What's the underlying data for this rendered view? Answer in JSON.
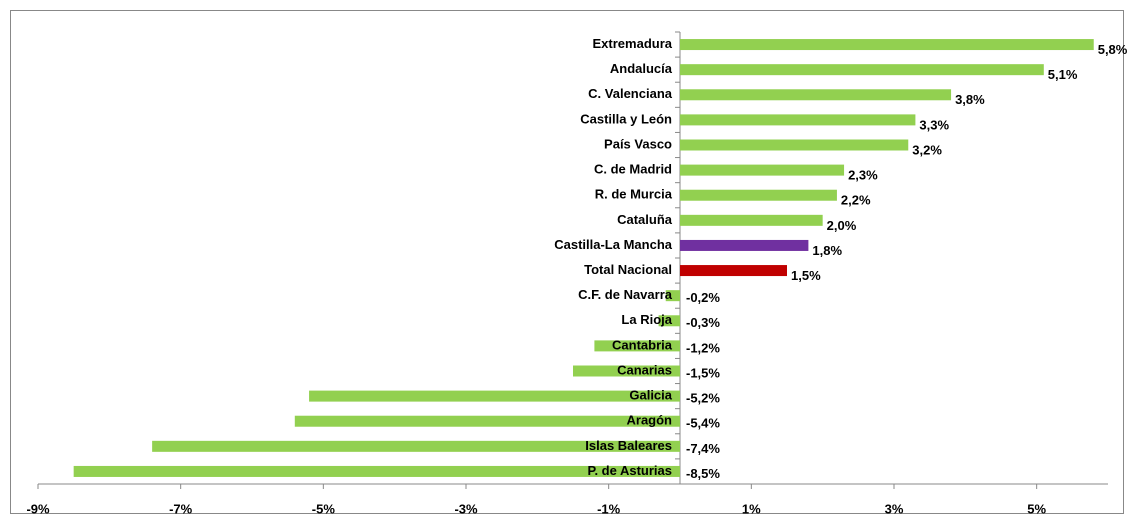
{
  "chart_data": {
    "type": "bar",
    "orientation": "horizontal",
    "categories": [
      "Extremadura",
      "Andalucía",
      "C. Valenciana",
      "Castilla y León",
      "País Vasco",
      "C. de Madrid",
      "R. de Murcia",
      "Cataluña",
      "Castilla-La Mancha",
      "Total Nacional",
      "C.F. de Navarra",
      "La Rioja",
      "Cantabria",
      "Canarias",
      "Galicia",
      "Aragón",
      "Islas Baleares",
      "P. de Asturias"
    ],
    "values": [
      5.8,
      5.1,
      3.8,
      3.3,
      3.2,
      2.3,
      2.2,
      2.0,
      1.8,
      1.5,
      -0.2,
      -0.3,
      -1.2,
      -1.5,
      -5.2,
      -5.4,
      -7.4,
      -8.5
    ],
    "value_labels": [
      "5,8%",
      "5,1%",
      "3,8%",
      "3,3%",
      "3,2%",
      "2,3%",
      "2,2%",
      "2,0%",
      "1,8%",
      "1,5%",
      "-0,2%",
      "-0,3%",
      "-1,2%",
      "-1,5%",
      "-5,2%",
      "-5,4%",
      "-7,4%",
      "-8,5%"
    ],
    "colors": [
      "#92d050",
      "#92d050",
      "#92d050",
      "#92d050",
      "#92d050",
      "#92d050",
      "#92d050",
      "#92d050",
      "#7030a0",
      "#c00000",
      "#92d050",
      "#92d050",
      "#92d050",
      "#92d050",
      "#92d050",
      "#92d050",
      "#92d050",
      "#92d050"
    ],
    "negative_label_color": "#ff0000",
    "xlim": [
      -9,
      6
    ],
    "xticks": [
      {
        "value": -9,
        "label": "-9%"
      },
      {
        "value": -7,
        "label": "-7%"
      },
      {
        "value": -5,
        "label": "-5%"
      },
      {
        "value": -3,
        "label": "-3%"
      },
      {
        "value": -1,
        "label": "-1%"
      },
      {
        "value": 1,
        "label": "1%"
      },
      {
        "value": 3,
        "label": "3%"
      },
      {
        "value": 5,
        "label": "5%"
      }
    ]
  }
}
